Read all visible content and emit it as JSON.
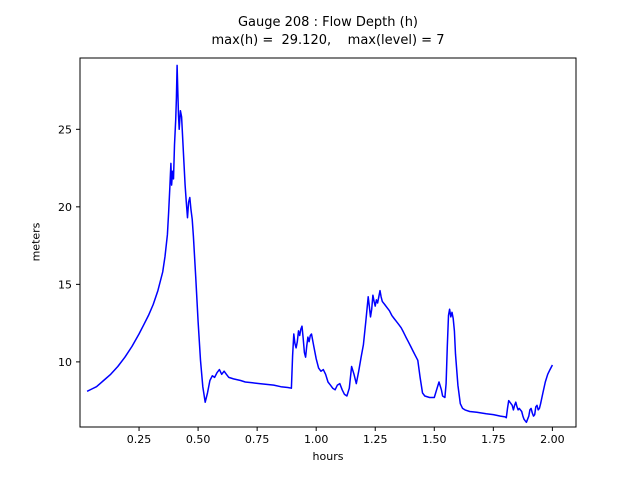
{
  "chart_data": {
    "type": "line",
    "title": "Gauge 208 : Flow Depth (h)",
    "subtitle": "max(h) =  29.120,    max(level) = 7",
    "xlabel": "hours",
    "ylabel": "meters",
    "xlim": [
      0.0,
      2.1
    ],
    "ylim": [
      5.8,
      29.6
    ],
    "x_ticks": [
      0.25,
      0.5,
      0.75,
      1.0,
      1.25,
      1.5,
      1.75,
      2.0
    ],
    "x_tick_labels": [
      "0.25",
      "0.50",
      "0.75",
      "1.00",
      "1.25",
      "1.50",
      "1.75",
      "2.00"
    ],
    "y_ticks": [
      10,
      15,
      20,
      25
    ],
    "y_tick_labels": [
      "10",
      "15",
      "20",
      "25"
    ],
    "grid": false,
    "legend": "none",
    "line_color": "#0000ff",
    "axis_color": "#000000",
    "max_h": 29.12,
    "max_level": 7,
    "series": [
      {
        "name": "flow-depth-h",
        "points": [
          [
            0.03,
            8.1
          ],
          [
            0.05,
            8.25
          ],
          [
            0.07,
            8.4
          ],
          [
            0.1,
            8.8
          ],
          [
            0.13,
            9.2
          ],
          [
            0.16,
            9.7
          ],
          [
            0.19,
            10.3
          ],
          [
            0.22,
            11.0
          ],
          [
            0.25,
            11.8
          ],
          [
            0.27,
            12.4
          ],
          [
            0.29,
            13.0
          ],
          [
            0.31,
            13.7
          ],
          [
            0.33,
            14.6
          ],
          [
            0.35,
            15.8
          ],
          [
            0.36,
            16.8
          ],
          [
            0.37,
            18.2
          ],
          [
            0.375,
            19.6
          ],
          [
            0.38,
            21.2
          ],
          [
            0.385,
            22.8
          ],
          [
            0.388,
            21.4
          ],
          [
            0.392,
            22.3
          ],
          [
            0.396,
            21.8
          ],
          [
            0.4,
            24.0
          ],
          [
            0.405,
            25.6
          ],
          [
            0.408,
            27.0
          ],
          [
            0.411,
            29.12
          ],
          [
            0.414,
            27.5
          ],
          [
            0.417,
            25.9
          ],
          [
            0.42,
            25.0
          ],
          [
            0.425,
            26.2
          ],
          [
            0.43,
            25.8
          ],
          [
            0.435,
            24.4
          ],
          [
            0.44,
            22.9
          ],
          [
            0.445,
            21.4
          ],
          [
            0.45,
            20.3
          ],
          [
            0.455,
            19.3
          ],
          [
            0.46,
            20.3
          ],
          [
            0.465,
            20.6
          ],
          [
            0.47,
            19.8
          ],
          [
            0.475,
            19.2
          ],
          [
            0.48,
            18.1
          ],
          [
            0.49,
            15.5
          ],
          [
            0.5,
            12.6
          ],
          [
            0.51,
            10.1
          ],
          [
            0.52,
            8.4
          ],
          [
            0.53,
            7.4
          ],
          [
            0.54,
            8.0
          ],
          [
            0.55,
            8.8
          ],
          [
            0.56,
            9.1
          ],
          [
            0.57,
            9.0
          ],
          [
            0.58,
            9.3
          ],
          [
            0.59,
            9.5
          ],
          [
            0.6,
            9.2
          ],
          [
            0.61,
            9.4
          ],
          [
            0.62,
            9.2
          ],
          [
            0.63,
            9.0
          ],
          [
            0.65,
            8.9
          ],
          [
            0.68,
            8.8
          ],
          [
            0.7,
            8.7
          ],
          [
            0.73,
            8.65
          ],
          [
            0.76,
            8.6
          ],
          [
            0.79,
            8.55
          ],
          [
            0.82,
            8.5
          ],
          [
            0.85,
            8.4
          ],
          [
            0.88,
            8.35
          ],
          [
            0.895,
            8.3
          ],
          [
            0.9,
            10.4
          ],
          [
            0.905,
            11.8
          ],
          [
            0.91,
            11.2
          ],
          [
            0.915,
            10.9
          ],
          [
            0.92,
            11.3
          ],
          [
            0.925,
            12.0
          ],
          [
            0.93,
            11.7
          ],
          [
            0.935,
            12.1
          ],
          [
            0.94,
            12.3
          ],
          [
            0.945,
            11.5
          ],
          [
            0.95,
            10.6
          ],
          [
            0.955,
            10.3
          ],
          [
            0.96,
            11.0
          ],
          [
            0.965,
            11.6
          ],
          [
            0.97,
            11.3
          ],
          [
            0.975,
            11.7
          ],
          [
            0.98,
            11.8
          ],
          [
            0.99,
            11.0
          ],
          [
            1.0,
            10.2
          ],
          [
            1.01,
            9.6
          ],
          [
            1.02,
            9.4
          ],
          [
            1.03,
            9.5
          ],
          [
            1.04,
            9.2
          ],
          [
            1.05,
            8.7
          ],
          [
            1.06,
            8.5
          ],
          [
            1.07,
            8.3
          ],
          [
            1.08,
            8.2
          ],
          [
            1.09,
            8.5
          ],
          [
            1.1,
            8.6
          ],
          [
            1.11,
            8.2
          ],
          [
            1.12,
            7.9
          ],
          [
            1.13,
            7.8
          ],
          [
            1.14,
            8.3
          ],
          [
            1.15,
            9.7
          ],
          [
            1.16,
            9.2
          ],
          [
            1.17,
            8.6
          ],
          [
            1.18,
            9.4
          ],
          [
            1.19,
            10.3
          ],
          [
            1.2,
            11.1
          ],
          [
            1.21,
            12.6
          ],
          [
            1.22,
            14.2
          ],
          [
            1.225,
            13.6
          ],
          [
            1.23,
            12.9
          ],
          [
            1.235,
            13.4
          ],
          [
            1.24,
            14.3
          ],
          [
            1.245,
            13.9
          ],
          [
            1.25,
            13.6
          ],
          [
            1.255,
            14.0
          ],
          [
            1.26,
            13.8
          ],
          [
            1.265,
            14.2
          ],
          [
            1.27,
            14.6
          ],
          [
            1.275,
            14.2
          ],
          [
            1.28,
            13.9
          ],
          [
            1.29,
            13.7
          ],
          [
            1.3,
            13.5
          ],
          [
            1.31,
            13.3
          ],
          [
            1.32,
            13.0
          ],
          [
            1.33,
            12.8
          ],
          [
            1.34,
            12.6
          ],
          [
            1.35,
            12.4
          ],
          [
            1.36,
            12.2
          ],
          [
            1.37,
            11.9
          ],
          [
            1.38,
            11.6
          ],
          [
            1.39,
            11.3
          ],
          [
            1.4,
            11.0
          ],
          [
            1.41,
            10.7
          ],
          [
            1.42,
            10.4
          ],
          [
            1.43,
            10.1
          ],
          [
            1.44,
            9.0
          ],
          [
            1.45,
            8.0
          ],
          [
            1.46,
            7.8
          ],
          [
            1.48,
            7.7
          ],
          [
            1.5,
            7.7
          ],
          [
            1.51,
            8.2
          ],
          [
            1.52,
            8.7
          ],
          [
            1.53,
            8.2
          ],
          [
            1.535,
            7.8
          ],
          [
            1.545,
            7.7
          ],
          [
            1.55,
            8.6
          ],
          [
            1.555,
            11.0
          ],
          [
            1.56,
            13.0
          ],
          [
            1.565,
            13.4
          ],
          [
            1.57,
            12.9
          ],
          [
            1.575,
            13.2
          ],
          [
            1.58,
            12.8
          ],
          [
            1.585,
            12.0
          ],
          [
            1.59,
            10.5
          ],
          [
            1.6,
            8.5
          ],
          [
            1.61,
            7.3
          ],
          [
            1.62,
            7.0
          ],
          [
            1.63,
            6.9
          ],
          [
            1.65,
            6.8
          ],
          [
            1.68,
            6.75
          ],
          [
            1.7,
            6.7
          ],
          [
            1.72,
            6.65
          ],
          [
            1.75,
            6.6
          ],
          [
            1.78,
            6.5
          ],
          [
            1.8,
            6.45
          ],
          [
            1.805,
            6.4
          ],
          [
            1.81,
            7.0
          ],
          [
            1.815,
            7.5
          ],
          [
            1.82,
            7.4
          ],
          [
            1.83,
            7.2
          ],
          [
            1.835,
            6.9
          ],
          [
            1.84,
            7.2
          ],
          [
            1.845,
            7.4
          ],
          [
            1.85,
            7.1
          ],
          [
            1.855,
            6.9
          ],
          [
            1.86,
            7.0
          ],
          [
            1.87,
            6.8
          ],
          [
            1.875,
            6.5
          ],
          [
            1.88,
            6.3
          ],
          [
            1.885,
            6.2
          ],
          [
            1.89,
            6.1
          ],
          [
            1.895,
            6.3
          ],
          [
            1.9,
            6.5
          ],
          [
            1.905,
            6.9
          ],
          [
            1.91,
            7.0
          ],
          [
            1.915,
            6.7
          ],
          [
            1.92,
            6.5
          ],
          [
            1.925,
            6.6
          ],
          [
            1.93,
            7.1
          ],
          [
            1.935,
            7.2
          ],
          [
            1.94,
            6.9
          ],
          [
            1.945,
            7.0
          ],
          [
            1.95,
            7.3
          ],
          [
            1.96,
            8.0
          ],
          [
            1.97,
            8.7
          ],
          [
            1.98,
            9.2
          ],
          [
            1.99,
            9.5
          ],
          [
            2.0,
            9.8
          ]
        ]
      }
    ]
  }
}
